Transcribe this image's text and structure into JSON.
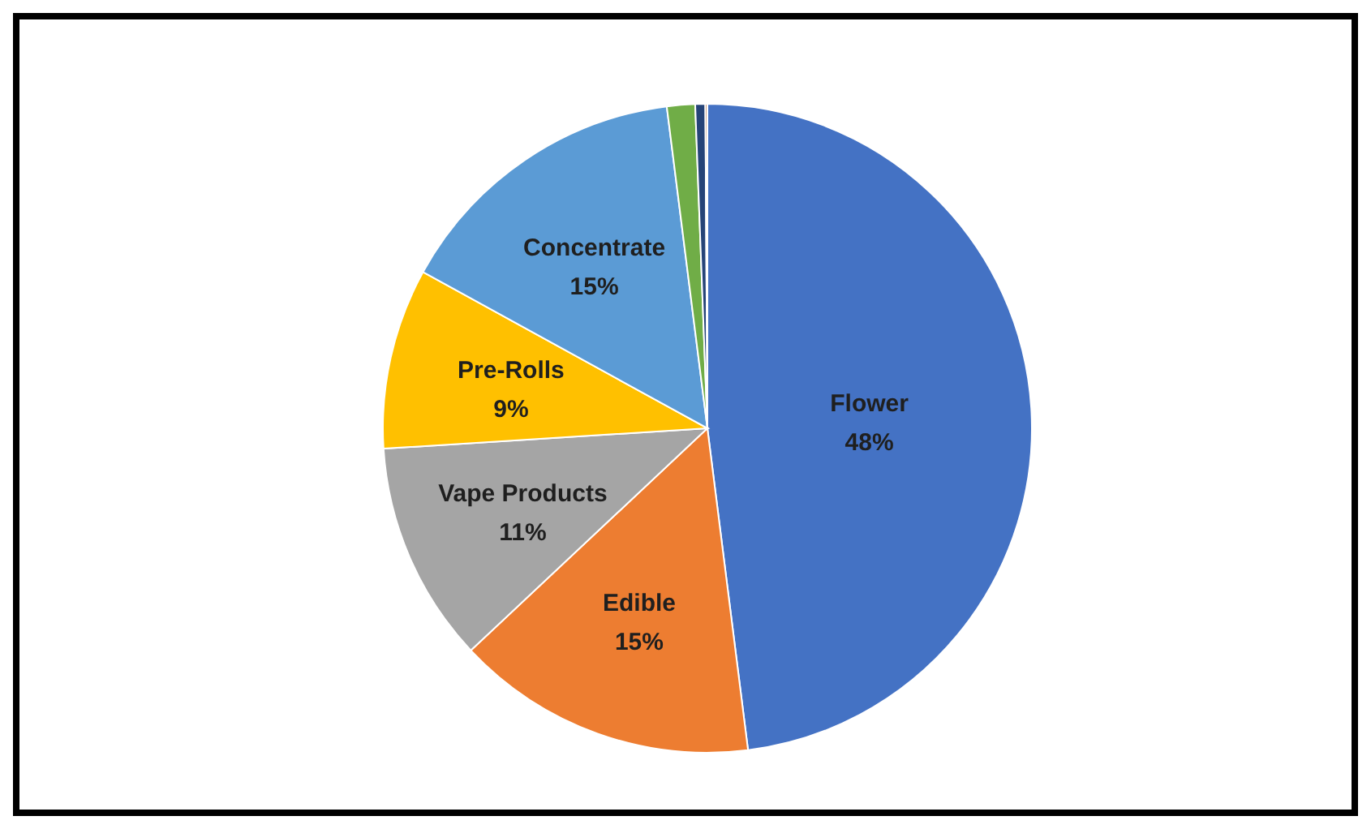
{
  "chart_data": {
    "type": "pie",
    "categories": [
      "Flower",
      "Edible",
      "Vape Products",
      "Pre-Rolls",
      "Concentrate",
      null,
      null,
      null
    ],
    "values": [
      48,
      15,
      11,
      9,
      15,
      1.4,
      0.5,
      0.1
    ],
    "colors": [
      "#4472c4",
      "#ed7d31",
      "#a5a5a5",
      "#ffc000",
      "#5b9bd5",
      "#70ad47",
      "#264478",
      "#9e480e"
    ],
    "value_labels": [
      "48%",
      "15%",
      "11%",
      "9%",
      "15%",
      null,
      null,
      null
    ]
  }
}
